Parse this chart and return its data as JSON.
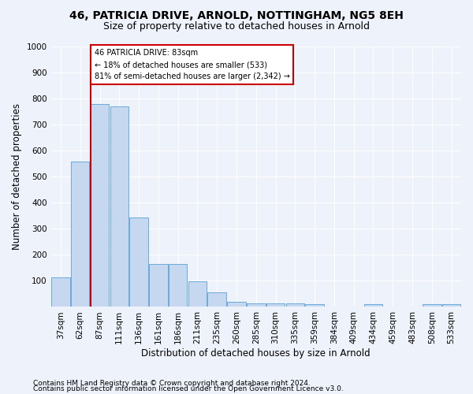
{
  "title1": "46, PATRICIA DRIVE, ARNOLD, NOTTINGHAM, NG5 8EH",
  "title2": "Size of property relative to detached houses in Arnold",
  "xlabel": "Distribution of detached houses by size in Arnold",
  "ylabel": "Number of detached properties",
  "categories": [
    "37sqm",
    "62sqm",
    "87sqm",
    "111sqm",
    "136sqm",
    "161sqm",
    "186sqm",
    "211sqm",
    "235sqm",
    "260sqm",
    "285sqm",
    "310sqm",
    "335sqm",
    "359sqm",
    "384sqm",
    "409sqm",
    "434sqm",
    "459sqm",
    "483sqm",
    "508sqm",
    "533sqm"
  ],
  "values": [
    112,
    558,
    778,
    770,
    343,
    165,
    165,
    98,
    55,
    20,
    15,
    15,
    12,
    10,
    0,
    0,
    10,
    0,
    0,
    10,
    10
  ],
  "bar_color": "#c5d8f0",
  "bar_edge_color": "#6aabda",
  "red_line_x": 2,
  "annotation_text": "46 PATRICIA DRIVE: 83sqm\n← 18% of detached houses are smaller (533)\n81% of semi-detached houses are larger (2,342) →",
  "ylim": [
    0,
    1000
  ],
  "yticks": [
    0,
    100,
    200,
    300,
    400,
    500,
    600,
    700,
    800,
    900,
    1000
  ],
  "red_line_color": "#cc0000",
  "annotation_box_facecolor": "#ffffff",
  "annotation_box_edgecolor": "#cc0000",
  "footer1": "Contains HM Land Registry data © Crown copyright and database right 2024.",
  "footer2": "Contains public sector information licensed under the Open Government Licence v3.0.",
  "background_color": "#eef2fb",
  "grid_color": "#ffffff",
  "title1_fontsize": 10,
  "title2_fontsize": 9,
  "xlabel_fontsize": 8.5,
  "ylabel_fontsize": 8.5,
  "tick_fontsize": 7.5,
  "footer_fontsize": 6.5
}
